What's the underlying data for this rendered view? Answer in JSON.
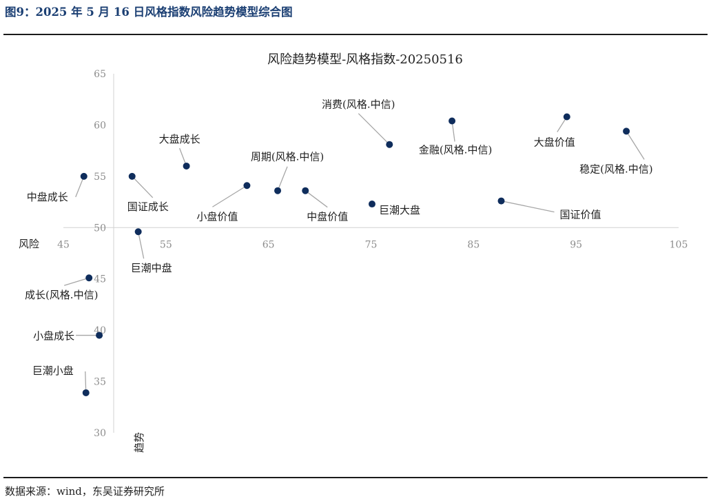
{
  "figure": {
    "title": "图9：2025 年 5 月 16 日风格指数风险趋势模型综合图",
    "source": "数据来源：wind，东吴证券研究所"
  },
  "chart_data": {
    "type": "scatter",
    "title": "风险趋势模型-风格指数-20250516",
    "xlabel": "风险",
    "ylabel": "趋势",
    "xlim": [
      45,
      105
    ],
    "ylim": [
      30,
      65
    ],
    "xticks": [
      "45",
      "55",
      "65",
      "75",
      "85",
      "95",
      "105"
    ],
    "yticks": [
      "30",
      "35",
      "40",
      "45",
      "50",
      "55",
      "60",
      "65"
    ],
    "axis_cross": {
      "x": 45,
      "y": 50
    },
    "grid": false,
    "marker_color": "#0f2d5c",
    "points": [
      {
        "label": "中盘成长",
        "x": 47.0,
        "y": 55.0
      },
      {
        "label": "国证成长",
        "x": 51.7,
        "y": 55.0
      },
      {
        "label": "大盘成长",
        "x": 57.0,
        "y": 56.0
      },
      {
        "label": "巨潮中盘",
        "x": 52.3,
        "y": 49.6
      },
      {
        "label": "成长(风格.中信)",
        "x": 47.5,
        "y": 45.1
      },
      {
        "label": "小盘成长",
        "x": 48.5,
        "y": 39.5
      },
      {
        "label": "巨潮小盘",
        "x": 47.2,
        "y": 33.9
      },
      {
        "label": "小盘价值",
        "x": 62.9,
        "y": 54.1
      },
      {
        "label": "周期(风格.中信)",
        "x": 65.9,
        "y": 53.6
      },
      {
        "label": "中盘价值",
        "x": 68.6,
        "y": 53.6
      },
      {
        "label": "消费(风格.中信)",
        "x": 76.8,
        "y": 58.1
      },
      {
        "label": "巨潮大盘",
        "x": 75.1,
        "y": 52.3
      },
      {
        "label": "金融(风格.中信)",
        "x": 82.9,
        "y": 60.4
      },
      {
        "label": "国证价值",
        "x": 87.7,
        "y": 52.6
      },
      {
        "label": "大盘价值",
        "x": 94.1,
        "y": 60.8
      },
      {
        "label": "稳定(风格.中信)",
        "x": 99.9,
        "y": 59.4
      }
    ]
  }
}
